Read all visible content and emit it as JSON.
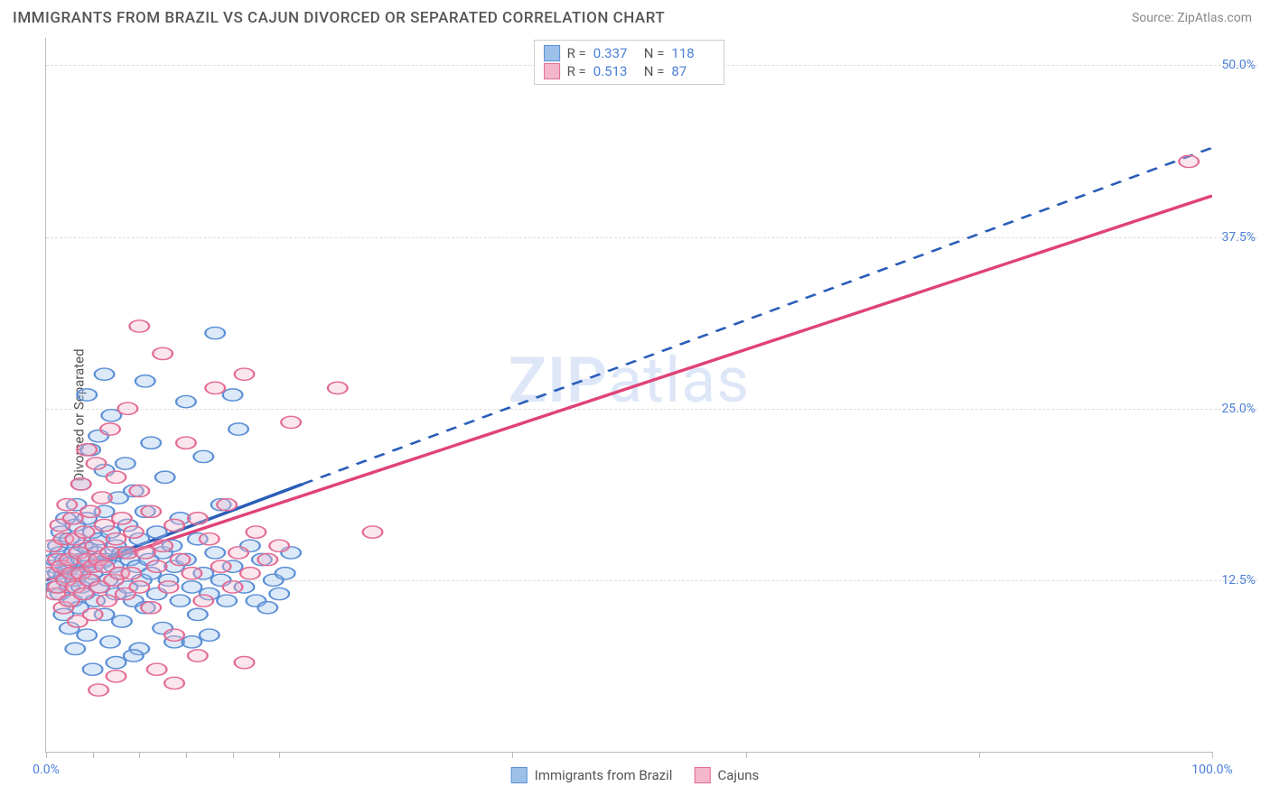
{
  "title": "IMMIGRANTS FROM BRAZIL VS CAJUN DIVORCED OR SEPARATED CORRELATION CHART",
  "source": "Source: ZipAtlas.com",
  "watermark": {
    "zip": "ZIP",
    "atlas": "atlas"
  },
  "ylabel": "Divorced or Separated",
  "chart": {
    "type": "scatter_with_regression",
    "background_color": "#ffffff",
    "grid_color": "#dddddd",
    "axis_color": "#bbbbbb",
    "tick_label_color": "#4a7fd8",
    "xlim": [
      0,
      100
    ],
    "ylim": [
      0,
      52
    ],
    "yticks": [
      {
        "v": 12.5,
        "label": "12.5%"
      },
      {
        "v": 25.0,
        "label": "25.0%"
      },
      {
        "v": 37.5,
        "label": "37.5%"
      },
      {
        "v": 50.0,
        "label": "50.0%"
      }
    ],
    "xticks_minor": [
      0,
      4,
      8,
      12,
      16,
      20,
      40,
      60,
      80,
      100
    ],
    "xtick_labels": [
      {
        "v": 0,
        "label": "0.0%"
      },
      {
        "v": 100,
        "label": "100.0%"
      }
    ],
    "marker_radius": 7,
    "marker_stroke_width": 1.2,
    "marker_fill_opacity": 0.35,
    "series": [
      {
        "name": "Immigrants from Brazil",
        "color_stroke": "#5b8fd6",
        "color_fill": "#9cc0ea",
        "R": "0.337",
        "N": "118",
        "regression": {
          "x1": 0,
          "y1": 12.5,
          "x2": 22,
          "y2": 19.5,
          "solid": true,
          "dash_x2": 100,
          "dash_y2": 44,
          "stroke": "#2a5db8",
          "width": 2
        },
        "points": [
          [
            0.5,
            13.5
          ],
          [
            0.7,
            14.0
          ],
          [
            0.8,
            12.0
          ],
          [
            1.0,
            13.0
          ],
          [
            1.0,
            15.0
          ],
          [
            1.2,
            11.5
          ],
          [
            1.2,
            14.5
          ],
          [
            1.3,
            16.0
          ],
          [
            1.5,
            12.8
          ],
          [
            1.5,
            10.0
          ],
          [
            1.6,
            14.0
          ],
          [
            1.7,
            17.0
          ],
          [
            1.8,
            13.2
          ],
          [
            2.0,
            12.0
          ],
          [
            2.0,
            15.5
          ],
          [
            2.0,
            9.0
          ],
          [
            2.2,
            13.8
          ],
          [
            2.3,
            11.0
          ],
          [
            2.4,
            14.5
          ],
          [
            2.5,
            16.5
          ],
          [
            2.5,
            12.5
          ],
          [
            2.6,
            18.0
          ],
          [
            2.7,
            13.0
          ],
          [
            2.8,
            10.5
          ],
          [
            3.0,
            14.0
          ],
          [
            3.0,
            12.0
          ],
          [
            3.0,
            19.5
          ],
          [
            3.2,
            15.0
          ],
          [
            3.3,
            11.5
          ],
          [
            3.4,
            13.5
          ],
          [
            3.5,
            17.0
          ],
          [
            3.5,
            8.5
          ],
          [
            3.6,
            14.8
          ],
          [
            3.8,
            12.5
          ],
          [
            3.8,
            22.0
          ],
          [
            4.0,
            13.0
          ],
          [
            4.0,
            16.0
          ],
          [
            4.2,
            11.0
          ],
          [
            4.3,
            14.5
          ],
          [
            4.5,
            23.0
          ],
          [
            4.5,
            12.0
          ],
          [
            4.6,
            15.5
          ],
          [
            4.8,
            13.8
          ],
          [
            5.0,
            17.5
          ],
          [
            5.0,
            10.0
          ],
          [
            5.0,
            20.5
          ],
          [
            5.2,
            14.0
          ],
          [
            5.3,
            12.5
          ],
          [
            5.5,
            16.0
          ],
          [
            5.5,
            8.0
          ],
          [
            5.6,
            24.5
          ],
          [
            5.8,
            13.5
          ],
          [
            6.0,
            15.0
          ],
          [
            6.0,
            11.5
          ],
          [
            6.2,
            18.5
          ],
          [
            6.3,
            13.0
          ],
          [
            6.5,
            14.5
          ],
          [
            6.5,
            9.5
          ],
          [
            6.8,
            21.0
          ],
          [
            7.0,
            12.0
          ],
          [
            7.0,
            16.5
          ],
          [
            7.2,
            14.0
          ],
          [
            7.5,
            11.0
          ],
          [
            7.5,
            19.0
          ],
          [
            7.8,
            13.5
          ],
          [
            8.0,
            15.5
          ],
          [
            8.0,
            7.5
          ],
          [
            8.2,
            12.5
          ],
          [
            8.5,
            17.5
          ],
          [
            8.5,
            10.5
          ],
          [
            8.8,
            14.0
          ],
          [
            9.0,
            13.0
          ],
          [
            9.0,
            22.5
          ],
          [
            9.5,
            11.5
          ],
          [
            9.5,
            16.0
          ],
          [
            10.0,
            14.5
          ],
          [
            10.0,
            9.0
          ],
          [
            10.2,
            20.0
          ],
          [
            10.5,
            12.5
          ],
          [
            10.8,
            15.0
          ],
          [
            11.0,
            13.5
          ],
          [
            11.0,
            8.0
          ],
          [
            11.5,
            17.0
          ],
          [
            11.5,
            11.0
          ],
          [
            12.0,
            14.0
          ],
          [
            12.0,
            25.5
          ],
          [
            12.5,
            12.0
          ],
          [
            13.0,
            15.5
          ],
          [
            13.0,
            10.0
          ],
          [
            13.5,
            21.5
          ],
          [
            13.5,
            13.0
          ],
          [
            14.0,
            11.5
          ],
          [
            14.5,
            30.5
          ],
          [
            14.5,
            14.5
          ],
          [
            15.0,
            12.5
          ],
          [
            15.0,
            18.0
          ],
          [
            15.5,
            11.0
          ],
          [
            16.0,
            13.5
          ],
          [
            16.5,
            23.5
          ],
          [
            17.0,
            12.0
          ],
          [
            17.5,
            15.0
          ],
          [
            18.0,
            11.0
          ],
          [
            18.5,
            14.0
          ],
          [
            19.0,
            10.5
          ],
          [
            19.5,
            12.5
          ],
          [
            20.0,
            11.5
          ],
          [
            20.5,
            13.0
          ],
          [
            21.0,
            14.5
          ],
          [
            16.0,
            26.0
          ],
          [
            8.5,
            27.0
          ],
          [
            5.0,
            27.5
          ],
          [
            3.5,
            26.0
          ],
          [
            12.5,
            8.0
          ],
          [
            14.0,
            8.5
          ],
          [
            6.0,
            6.5
          ],
          [
            7.5,
            7.0
          ],
          [
            4.0,
            6.0
          ],
          [
            2.5,
            7.5
          ]
        ]
      },
      {
        "name": "Cajuns",
        "color_stroke": "#e36b94",
        "color_fill": "#f4b6cc",
        "R": "0.513",
        "N": "87",
        "regression": {
          "x1": 0,
          "y1": 12.5,
          "x2": 100,
          "y2": 40.5,
          "solid": true,
          "stroke": "#e04277",
          "width": 2
        },
        "points": [
          [
            0.3,
            13.0
          ],
          [
            0.5,
            15.0
          ],
          [
            0.8,
            11.5
          ],
          [
            1.0,
            14.0
          ],
          [
            1.0,
            12.0
          ],
          [
            1.2,
            16.5
          ],
          [
            1.3,
            13.5
          ],
          [
            1.5,
            10.5
          ],
          [
            1.5,
            15.5
          ],
          [
            1.7,
            12.5
          ],
          [
            1.8,
            18.0
          ],
          [
            2.0,
            14.0
          ],
          [
            2.0,
            11.0
          ],
          [
            2.2,
            13.0
          ],
          [
            2.3,
            17.0
          ],
          [
            2.5,
            12.0
          ],
          [
            2.5,
            15.5
          ],
          [
            2.7,
            9.5
          ],
          [
            2.8,
            14.5
          ],
          [
            3.0,
            19.5
          ],
          [
            3.0,
            13.0
          ],
          [
            3.2,
            11.5
          ],
          [
            3.3,
            16.0
          ],
          [
            3.5,
            14.0
          ],
          [
            3.5,
            22.0
          ],
          [
            3.7,
            12.5
          ],
          [
            3.8,
            17.5
          ],
          [
            4.0,
            13.5
          ],
          [
            4.0,
            10.0
          ],
          [
            4.2,
            15.0
          ],
          [
            4.3,
            21.0
          ],
          [
            4.5,
            14.0
          ],
          [
            4.6,
            12.0
          ],
          [
            4.8,
            18.5
          ],
          [
            5.0,
            13.5
          ],
          [
            5.0,
            16.5
          ],
          [
            5.2,
            11.0
          ],
          [
            5.5,
            23.5
          ],
          [
            5.5,
            14.5
          ],
          [
            5.8,
            12.5
          ],
          [
            6.0,
            15.5
          ],
          [
            6.0,
            20.0
          ],
          [
            6.3,
            13.0
          ],
          [
            6.5,
            17.0
          ],
          [
            6.8,
            11.5
          ],
          [
            7.0,
            14.5
          ],
          [
            7.0,
            25.0
          ],
          [
            7.3,
            13.0
          ],
          [
            7.5,
            16.0
          ],
          [
            8.0,
            12.0
          ],
          [
            8.0,
            19.0
          ],
          [
            8.5,
            14.5
          ],
          [
            9.0,
            10.5
          ],
          [
            9.0,
            17.5
          ],
          [
            9.5,
            13.5
          ],
          [
            10.0,
            15.0
          ],
          [
            10.0,
            29.0
          ],
          [
            10.5,
            12.0
          ],
          [
            11.0,
            16.5
          ],
          [
            11.0,
            8.5
          ],
          [
            11.5,
            14.0
          ],
          [
            12.0,
            22.5
          ],
          [
            12.5,
            13.0
          ],
          [
            13.0,
            17.0
          ],
          [
            13.5,
            11.0
          ],
          [
            14.0,
            15.5
          ],
          [
            14.5,
            26.5
          ],
          [
            15.0,
            13.5
          ],
          [
            15.5,
            18.0
          ],
          [
            16.0,
            12.0
          ],
          [
            16.5,
            14.5
          ],
          [
            17.0,
            27.5
          ],
          [
            17.5,
            13.0
          ],
          [
            18.0,
            16.0
          ],
          [
            19.0,
            14.0
          ],
          [
            20.0,
            15.0
          ],
          [
            21.0,
            24.0
          ],
          [
            25.0,
            26.5
          ],
          [
            28.0,
            16.0
          ],
          [
            8.0,
            31.0
          ],
          [
            6.0,
            5.5
          ],
          [
            4.5,
            4.5
          ],
          [
            9.5,
            6.0
          ],
          [
            11.0,
            5.0
          ],
          [
            13.0,
            7.0
          ],
          [
            17.0,
            6.5
          ],
          [
            98.0,
            43.0
          ]
        ]
      }
    ]
  },
  "legend_bottom": [
    {
      "label": "Immigrants from Brazil",
      "stroke": "#5b8fd6",
      "fill": "#9cc0ea"
    },
    {
      "label": "Cajuns",
      "stroke": "#e36b94",
      "fill": "#f4b6cc"
    }
  ]
}
